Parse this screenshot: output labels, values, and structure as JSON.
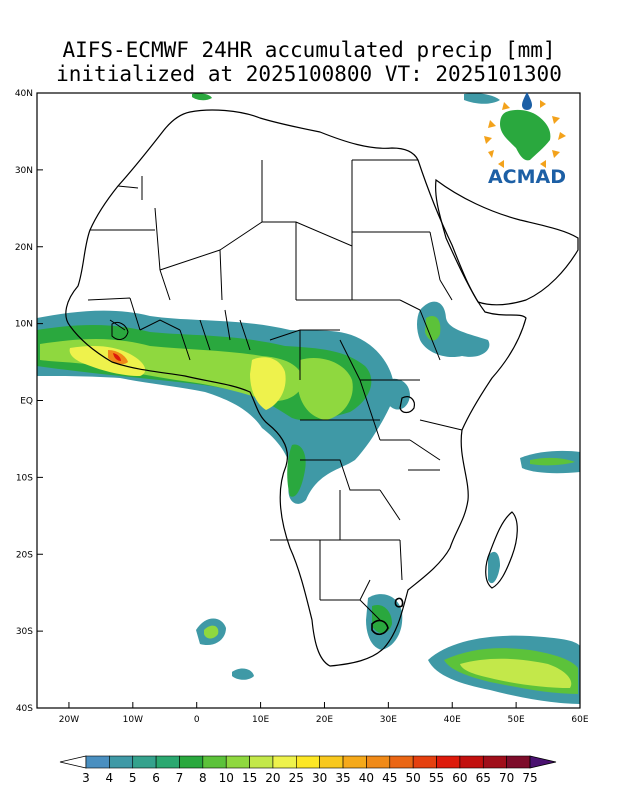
{
  "title": {
    "line1": "AIFS-ECMWF 24HR accumulated precip [mm]",
    "line2": "initialized at 2025100800 VT: 2025101300"
  },
  "logo": {
    "text": "ACMAD"
  },
  "map": {
    "extent": {
      "lon": [
        -25,
        60
      ],
      "lat": [
        -40,
        40
      ]
    },
    "lat_ticks": [
      {
        "lat": 40,
        "label": "40N"
      },
      {
        "lat": 30,
        "label": "30N"
      },
      {
        "lat": 20,
        "label": "20N"
      },
      {
        "lat": 10,
        "label": "10N"
      },
      {
        "lat": 0,
        "label": "EQ"
      },
      {
        "lat": -10,
        "label": "10S"
      },
      {
        "lat": -20,
        "label": "20S"
      },
      {
        "lat": -30,
        "label": "30S"
      },
      {
        "lat": -40,
        "label": "40S"
      }
    ],
    "lon_ticks": [
      {
        "lon": -20,
        "label": "20W"
      },
      {
        "lon": -10,
        "label": "10W"
      },
      {
        "lon": 0,
        "label": "0"
      },
      {
        "lon": 10,
        "label": "10E"
      },
      {
        "lon": 20,
        "label": "20E"
      },
      {
        "lon": 30,
        "label": "30E"
      },
      {
        "lon": 40,
        "label": "40E"
      },
      {
        "lon": 50,
        "label": "50E"
      },
      {
        "lon": 60,
        "label": "60E"
      }
    ]
  },
  "colorbar": {
    "labels": [
      "3",
      "4",
      "5",
      "6",
      "7",
      "8",
      "10",
      "15",
      "20",
      "25",
      "30",
      "35",
      "40",
      "45",
      "50",
      "55",
      "60",
      "65",
      "70",
      "75"
    ],
    "colors": [
      "#4a8fc0",
      "#3f99a6",
      "#35a28d",
      "#2ba870",
      "#2aa83e",
      "#5cc23a",
      "#8fd83f",
      "#c3e84a",
      "#eef24c",
      "#fde725",
      "#f8c81e",
      "#f5a91a",
      "#f08a18",
      "#ea6614",
      "#e5400f",
      "#dd1a0b",
      "#c2100e",
      "#a00e1a",
      "#7d0c2a",
      "#5b0a38",
      "#4a1170"
    ]
  },
  "chart_data": {
    "type": "heatmap",
    "title": "AIFS-ECMWF 24HR accumulated precip [mm]",
    "subtitle": "initialized at 2025100800 VT: 2025101300",
    "units": "mm",
    "levels": [
      3,
      4,
      5,
      6,
      7,
      8,
      10,
      15,
      20,
      25,
      30,
      35,
      40,
      45,
      50,
      55,
      60,
      65,
      70,
      75
    ],
    "xlim": [
      -25,
      60
    ],
    "ylim": [
      -40,
      40
    ],
    "precip_regions": [
      {
        "lon": -12,
        "lat": 6,
        "max_level": 45
      },
      {
        "lon": -20,
        "lat": 8,
        "max_level": 10
      },
      {
        "lon": -2,
        "lat": 7,
        "max_level": 20
      },
      {
        "lon": 12,
        "lat": 4,
        "max_level": 20
      },
      {
        "lon": 21,
        "lat": 3,
        "max_level": 15
      },
      {
        "lon": 16,
        "lat": -7,
        "max_level": 8
      },
      {
        "lon": 37,
        "lat": 8,
        "max_level": 8
      },
      {
        "lon": 30,
        "lat": -26,
        "max_level": 8
      },
      {
        "lon": 1,
        "lat": -31,
        "max_level": 8
      },
      {
        "lon": 57,
        "lat": -9,
        "max_level": 8
      },
      {
        "lon": 54,
        "lat": -36,
        "max_level": 20
      },
      {
        "lon": 49,
        "lat": -20,
        "max_level": 4
      },
      {
        "lon": 6,
        "lat": -38,
        "max_level": 4
      },
      {
        "lon": 0,
        "lat": 39,
        "max_level": 5
      },
      {
        "lon": 44,
        "lat": 38,
        "max_level": 5
      }
    ]
  }
}
